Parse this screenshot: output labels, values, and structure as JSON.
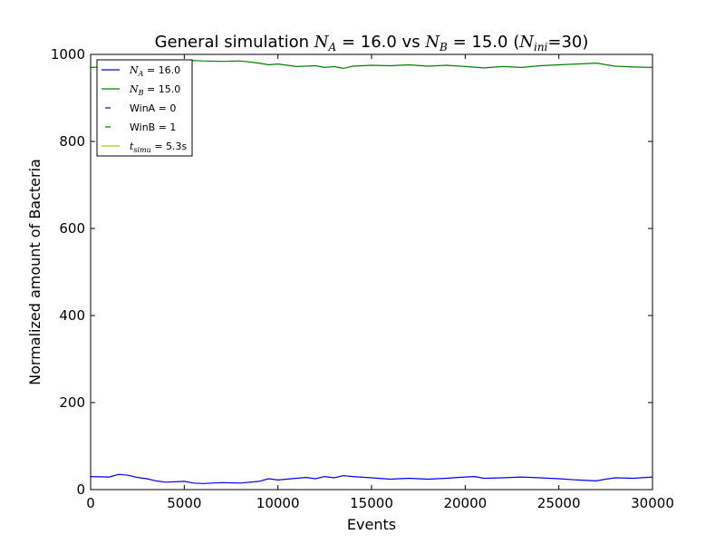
{
  "chart_data": {
    "type": "line",
    "title_parts": {
      "prefix": "General simulation ",
      "na_sym": "N",
      "na_sub": "A",
      "na_val": " = 16.0 vs ",
      "nb_sym": "N",
      "nb_sub": "B",
      "nb_val": " = 15.0 (",
      "ni_sym": "N",
      "ni_sub": "ini",
      "ni_val": "=30)"
    },
    "xlabel": "Events",
    "ylabel": "Normalized amount of Bacteria",
    "xlim": [
      0,
      30000
    ],
    "ylim": [
      0,
      1000
    ],
    "xticks": [
      0,
      5000,
      10000,
      15000,
      20000,
      25000,
      30000
    ],
    "yticks": [
      0,
      200,
      400,
      600,
      800,
      1000
    ],
    "grid": false,
    "legend_position": "top-left",
    "series": [
      {
        "name": "N_A = 16.0",
        "color": "#0000ff",
        "x": [
          0,
          1000,
          1500,
          2000,
          2500,
          3000,
          3500,
          4000,
          4500,
          5000,
          5500,
          6000,
          7000,
          8000,
          9000,
          9500,
          10000,
          11000,
          11500,
          12000,
          12500,
          13000,
          13500,
          14000,
          15000,
          16000,
          17000,
          18000,
          19000,
          20000,
          20500,
          21000,
          22000,
          23000,
          24000,
          25000,
          26000,
          27000,
          27500,
          28000,
          29000,
          30000
        ],
        "y": [
          30,
          29,
          35,
          33,
          28,
          25,
          20,
          17,
          18,
          19,
          15,
          14,
          16,
          15,
          19,
          25,
          22,
          26,
          28,
          25,
          30,
          27,
          32,
          30,
          27,
          24,
          26,
          24,
          26,
          29,
          30,
          26,
          27,
          29,
          27,
          25,
          22,
          20,
          24,
          27,
          26,
          29
        ]
      },
      {
        "name": "N_B = 15.0",
        "color": "#008000",
        "x": [
          0,
          1000,
          2000,
          3000,
          4000,
          5000,
          5500,
          6000,
          7000,
          8000,
          9000,
          9500,
          10000,
          11000,
          12000,
          12500,
          13000,
          13500,
          14000,
          15000,
          16000,
          17000,
          18000,
          19000,
          20000,
          21000,
          22000,
          23000,
          24000,
          25000,
          26000,
          27000,
          28000,
          29000,
          30000
        ],
        "y": [
          970,
          972,
          966,
          970,
          980,
          982,
          986,
          985,
          984,
          985,
          980,
          976,
          978,
          972,
          974,
          970,
          972,
          968,
          973,
          975,
          974,
          976,
          973,
          975,
          972,
          969,
          972,
          970,
          974,
          976,
          978,
          980,
          973,
          971,
          970
        ]
      }
    ],
    "legend": [
      {
        "sym": "N",
        "sub": "A",
        "text": " = 16.0",
        "color": "#0000ff",
        "style": "solid"
      },
      {
        "sym": "N",
        "sub": "B",
        "text": " = 15.0",
        "color": "#008000",
        "style": "solid"
      },
      {
        "sym": "",
        "sub": "",
        "text": "WinA = 0",
        "color": "#0000ff",
        "style": "dash"
      },
      {
        "sym": "",
        "sub": "",
        "text": "WinB = 1",
        "color": "#008000",
        "style": "dash"
      },
      {
        "sym": "t",
        "sub": "simu",
        "text": " = 5.3s",
        "color": "#bfbf00",
        "style": "solid"
      }
    ]
  }
}
